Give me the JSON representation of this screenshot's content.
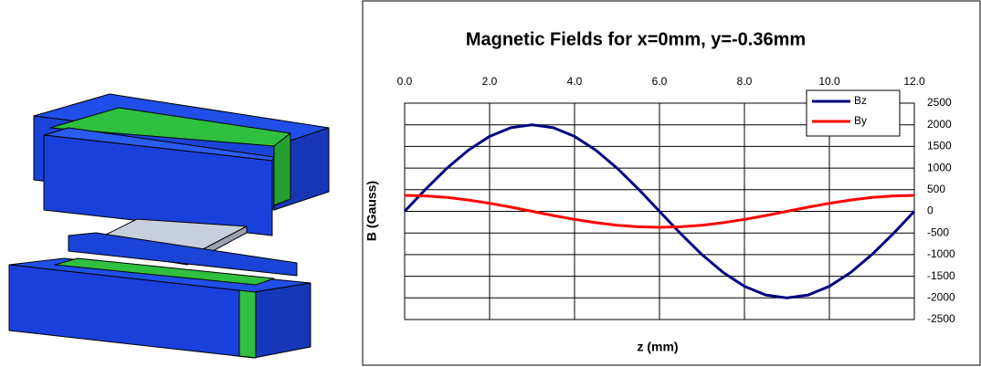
{
  "chart_data": {
    "type": "line",
    "title": "Magnetic Fields for x=0mm, y=-0.36mm",
    "x_label": "z (mm)",
    "y_label": "B (Gauss)",
    "x": [
      0,
      0.5,
      1,
      1.5,
      2,
      2.5,
      3,
      3.5,
      4,
      4.5,
      5,
      5.5,
      6,
      6.5,
      7,
      7.5,
      8,
      8.5,
      9,
      9.5,
      10,
      10.5,
      11,
      11.5,
      12
    ],
    "series": [
      {
        "name": "Bz",
        "color": "#000080",
        "values": [
          0,
          518,
          1000,
          1414,
          1732,
          1932,
          2000,
          1932,
          1732,
          1414,
          1000,
          518,
          0,
          -518,
          -1000,
          -1414,
          -1732,
          -1932,
          -2000,
          -1932,
          -1732,
          -1414,
          -1000,
          -518,
          0
        ]
      },
      {
        "name": "By",
        "color": "#ff0000",
        "values": [
          370,
          357,
          320,
          262,
          185,
          96,
          0,
          -96,
          -185,
          -262,
          -320,
          -357,
          -370,
          -357,
          -320,
          -262,
          -185,
          -96,
          0,
          96,
          185,
          262,
          320,
          357,
          370
        ]
      }
    ],
    "xlim": [
      0,
      12
    ],
    "ylim": [
      -2500,
      2500
    ],
    "xticks": [
      {
        "value": 0,
        "label": "0.0"
      },
      {
        "value": 2,
        "label": "2.0"
      },
      {
        "value": 4,
        "label": "4.0"
      },
      {
        "value": 6,
        "label": "6.0"
      },
      {
        "value": 8,
        "label": "8.0"
      },
      {
        "value": 10,
        "label": "10.0"
      },
      {
        "value": 12,
        "label": "12.0"
      }
    ],
    "yticks": [
      -2500,
      -2000,
      -1500,
      -1000,
      -500,
      0,
      500,
      1000,
      1500,
      2000,
      2500
    ],
    "xaxis_position": "top",
    "yaxis_position": "right",
    "grid": true,
    "legend": "upper right"
  }
}
